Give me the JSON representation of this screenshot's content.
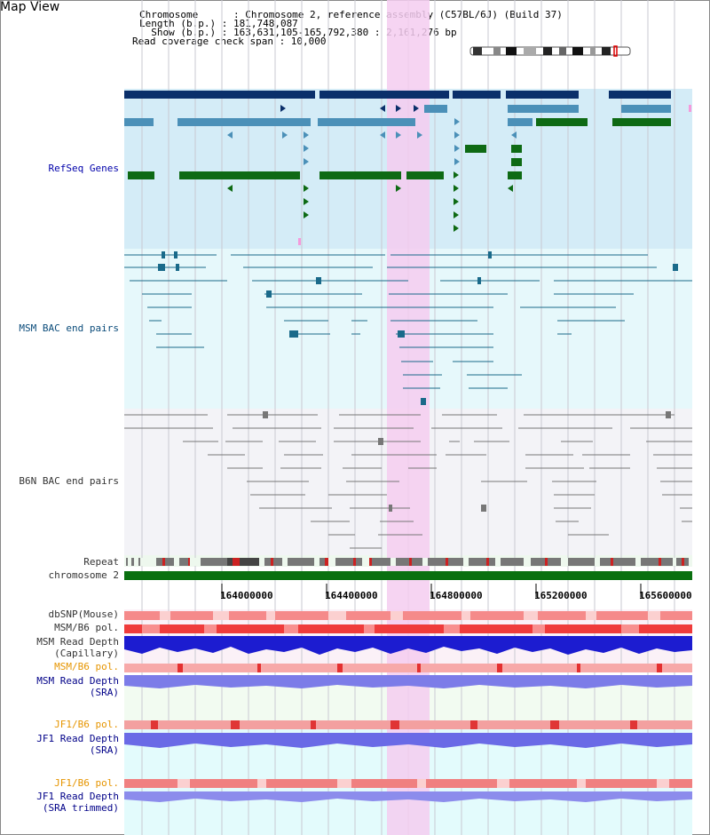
{
  "window": {
    "title": "Map View"
  },
  "info": {
    "line1": "Chromosome      : Chromosome 2, reference assembly (C57BL/6J) (Build 37)",
    "line2": "Length (b.p.) : 181,748,087",
    "line3": "  Show (b.p.) : 163,631,105-165,792,380 : 2,161,276 bp",
    "line4": "Read coverage check span : 10,000"
  },
  "tracks": {
    "refseq": "RefSeq Genes",
    "msm_bac": "MSM BAC end pairs",
    "b6n_bac": "B6N BAC end pairs",
    "repeat": "Repeat",
    "chromosome": "chromosome 2",
    "dbsnp": "dbSNP(Mouse)",
    "msm_b6_pol_1": "MSM/B6 pol.",
    "msm_read_depth_cap_1": "MSM Read Depth",
    "msm_read_depth_cap_2": "(Capillary)",
    "msm_b6_pol_2": "MSM/B6 pol.",
    "msm_read_depth_sra_1": "MSM Read Depth",
    "msm_read_depth_sra_2": "(SRA)",
    "jf1_b6_pol_1": "JF1/B6 pol.",
    "jf1_read_depth_sra_1": "JF1 Read Depth",
    "jf1_read_depth_sra_2": "(SRA)",
    "jf1_b6_pol_2": "JF1/B6 pol.",
    "jf1_read_depth_trim_1": "JF1 Read Depth",
    "jf1_read_depth_trim_2": "(SRA trimmed)"
  },
  "axis": {
    "ticks": [
      "164000000",
      "164400000",
      "164800000",
      "165200000",
      "165600000"
    ]
  },
  "colors": {
    "highlight": "#f4cdf0",
    "refseq_bg": "#d4ecf7",
    "msm_bac_bg": "#e6f8fb",
    "b6n_bg": "#f3f3f7",
    "gene_dark": "#0a2f6a",
    "gene_mid": "#4b90b8",
    "gene_green": "#0e6a14",
    "chrom_green": "#0a7010",
    "snp_red": "#ef5050",
    "depth_blue": "#1c1cd0",
    "sra_blue": "#7c7ce8"
  }
}
